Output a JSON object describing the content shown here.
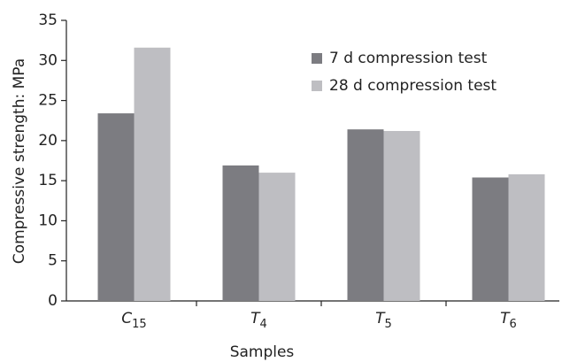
{
  "chart_data": {
    "type": "bar",
    "y_label": "Compressive strength: MPa",
    "x_label": "Samples",
    "categories": [
      "C15",
      "T4",
      "T5",
      "T6"
    ],
    "series": [
      {
        "name": "7 d compression test",
        "color": "#7c7c81",
        "values": [
          23.4,
          16.9,
          21.4,
          15.4
        ]
      },
      {
        "name": "28 d compression test",
        "color": "#bebec2",
        "values": [
          31.6,
          16.0,
          21.2,
          15.8
        ]
      }
    ],
    "ylim": [
      0,
      35
    ],
    "yticks": [
      0,
      5,
      10,
      15,
      20,
      25,
      30,
      35
    ]
  }
}
